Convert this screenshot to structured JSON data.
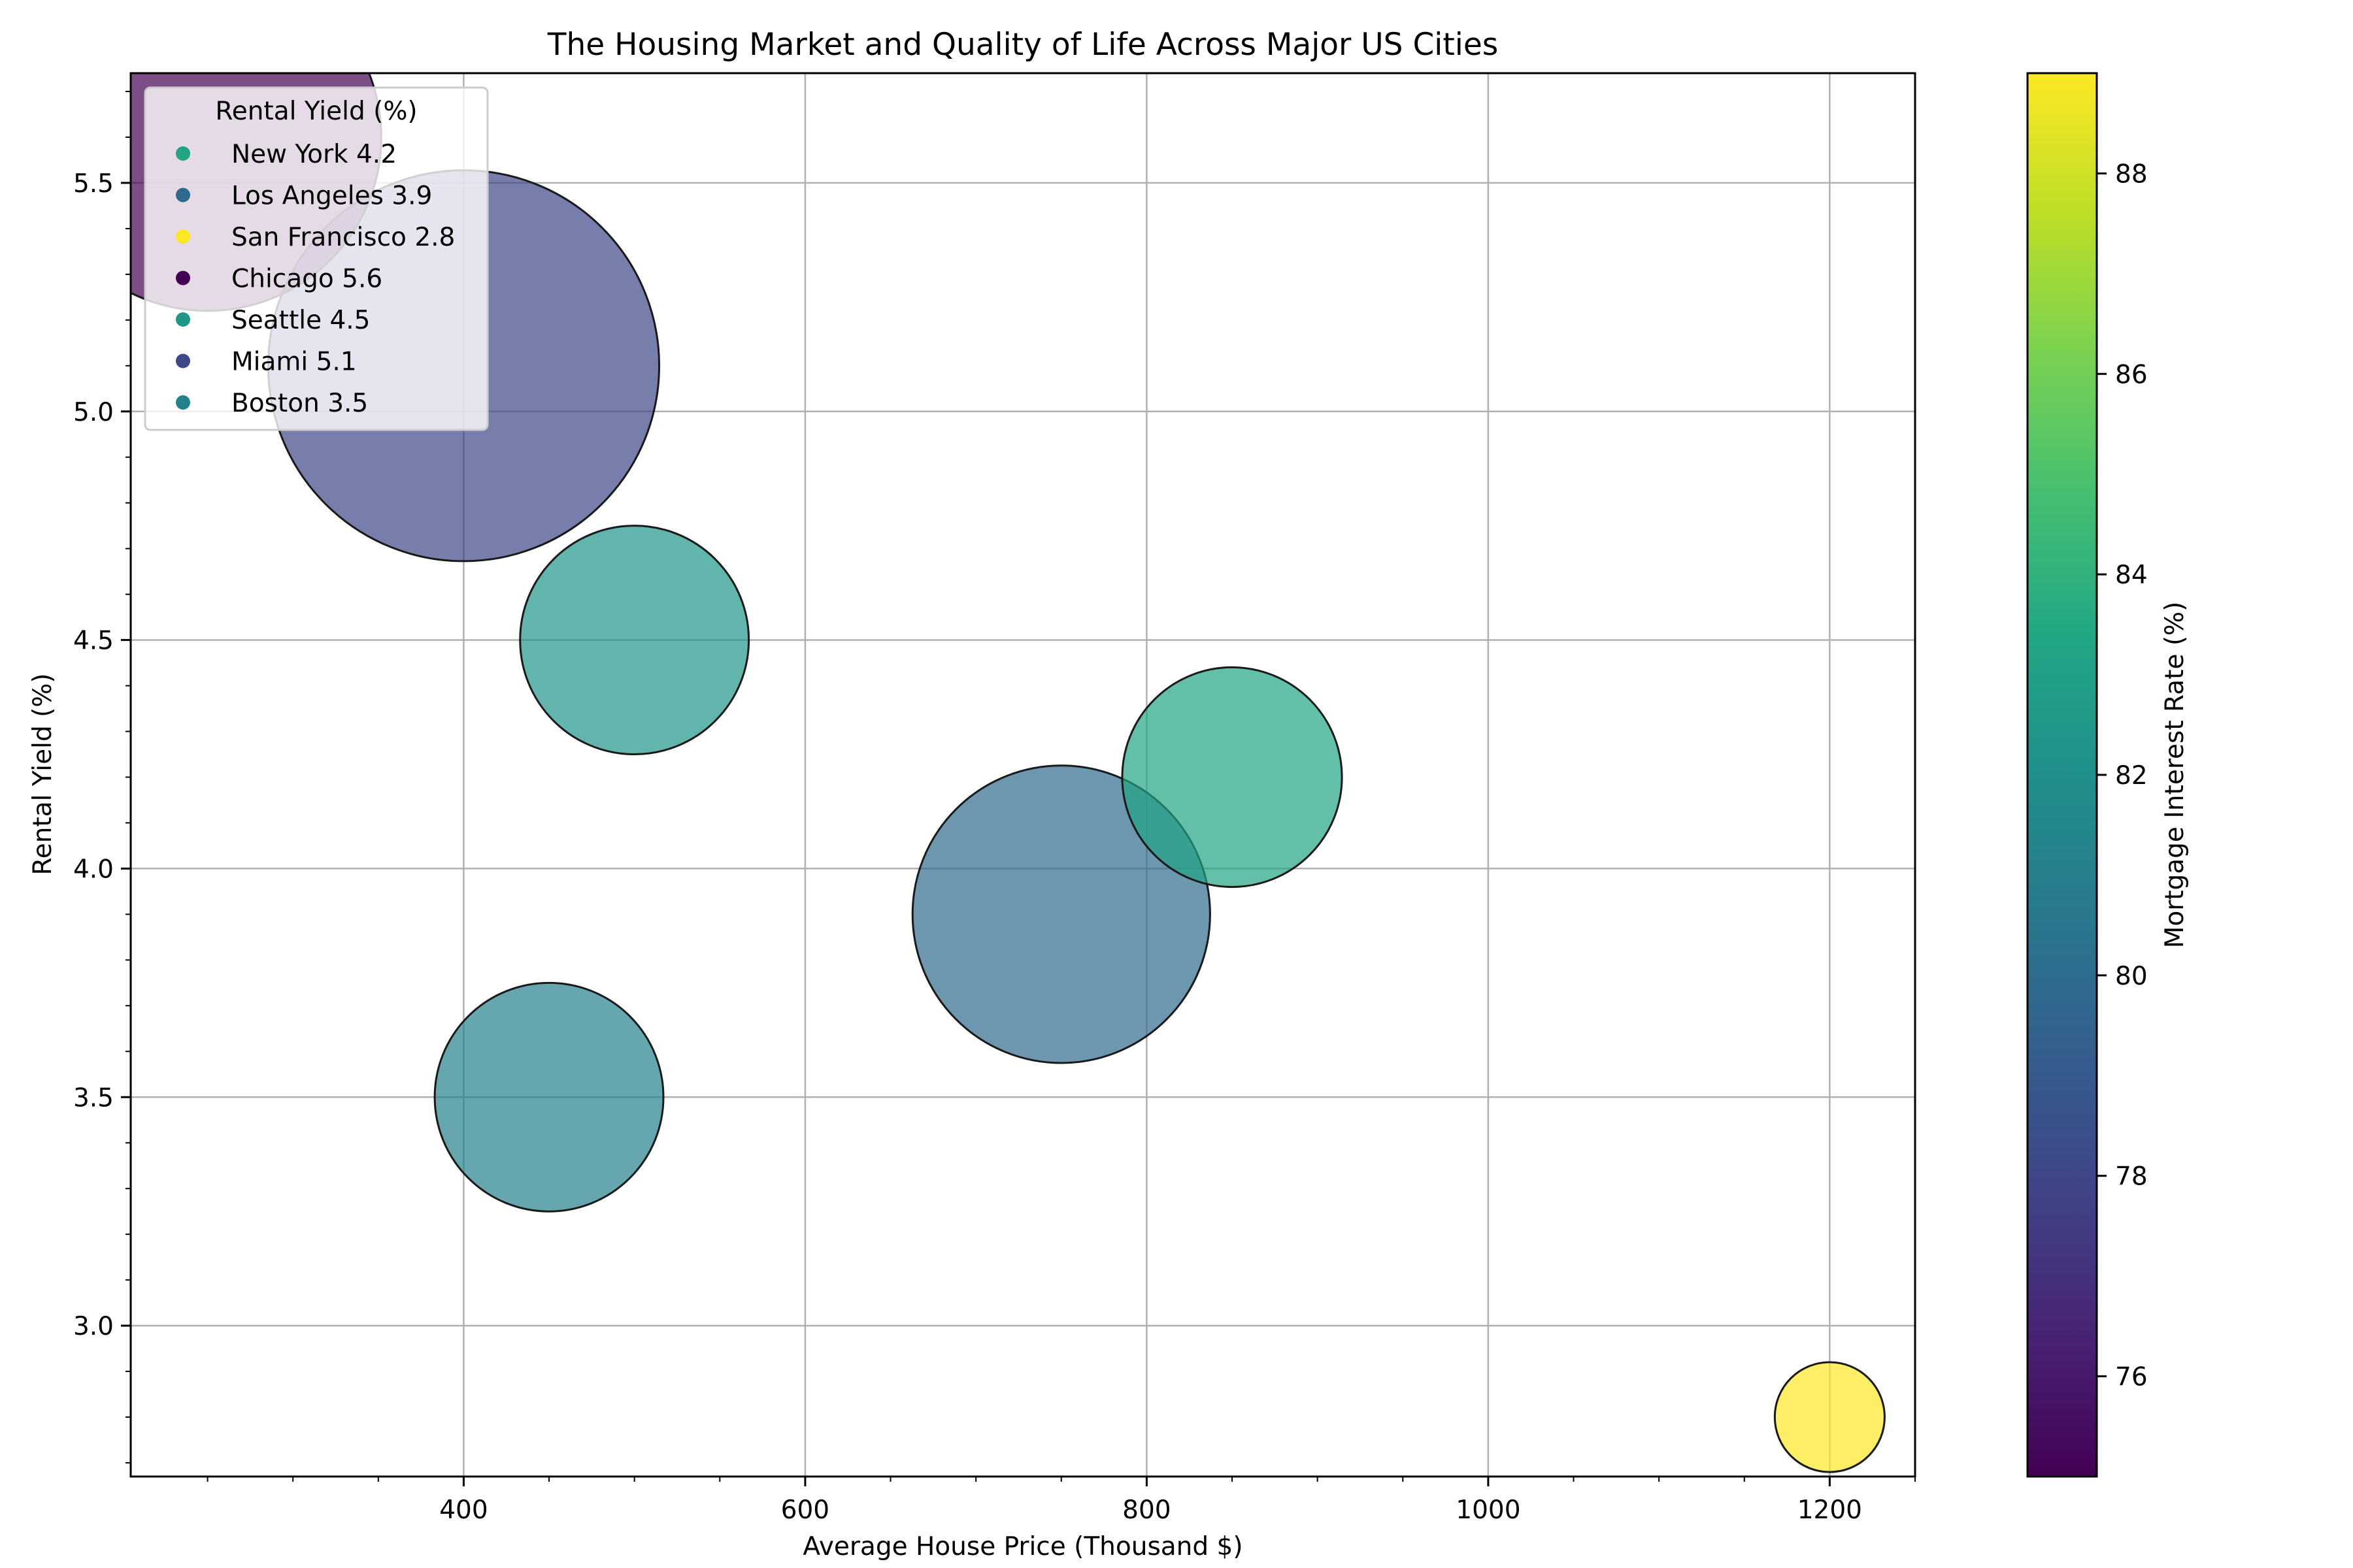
{
  "chart_data": {
    "type": "scatter",
    "title": "The Housing Market and Quality of Life Across Major US Cities",
    "xlabel": "Average House Price (Thousand $)",
    "ylabel": "Rental Yield (%)",
    "xlim": [
      205,
      1250
    ],
    "ylim": [
      2.67,
      5.74
    ],
    "x_ticks": [
      400,
      600,
      800,
      1000,
      1200
    ],
    "y_ticks": [
      3.0,
      3.5,
      4.0,
      4.5,
      5.0,
      5.5
    ],
    "grid": true,
    "bubble_size_encodes": "not labeled",
    "colorbar": {
      "label": "Mortgage Interest Rate (%)",
      "range": [
        75,
        89
      ],
      "ticks": [
        76,
        78,
        80,
        82,
        84,
        86,
        88
      ]
    },
    "legend": {
      "title": "Rental Yield (%)",
      "placement": "upper-left"
    },
    "points": [
      {
        "city": "New York",
        "x": 850,
        "y": 4.2,
        "color_value": 83.2,
        "size": 60,
        "label": "New York 4.2"
      },
      {
        "city": "Los Angeles",
        "x": 750,
        "y": 3.9,
        "color_value": 79.8,
        "size": 110,
        "label": "Los Angeles 3.9"
      },
      {
        "city": "San Francisco",
        "x": 1200,
        "y": 2.8,
        "color_value": 89.0,
        "size": 15,
        "label": "San Francisco 2.8"
      },
      {
        "city": "Chicago",
        "x": 250,
        "y": 5.6,
        "color_value": 75.0,
        "size": 150,
        "label": "Chicago 5.6"
      },
      {
        "city": "Seattle",
        "x": 500,
        "y": 4.5,
        "color_value": 82.3,
        "size": 65,
        "label": "Seattle 4.5"
      },
      {
        "city": "Miami",
        "x": 400,
        "y": 5.1,
        "color_value": 78.0,
        "size": 190,
        "label": "Miami 5.1"
      },
      {
        "city": "Boston",
        "x": 450,
        "y": 3.5,
        "color_value": 81.2,
        "size": 65,
        "label": "Boston 3.5"
      }
    ],
    "colors": {
      "axis": "#000000",
      "grid": "#b0b0b0",
      "bubble_edge": "#1a1a1a",
      "legend_frame": "#cccccc"
    }
  }
}
